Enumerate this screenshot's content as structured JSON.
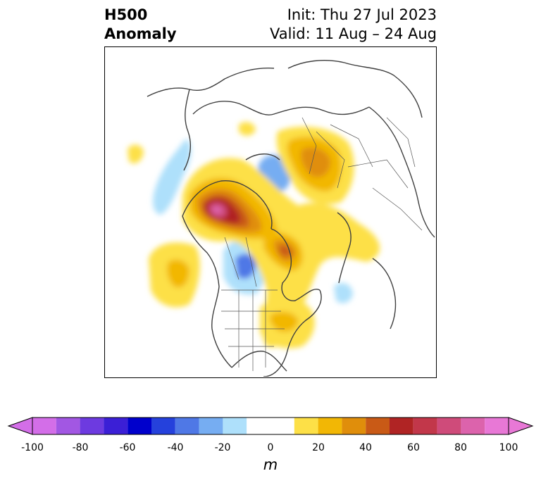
{
  "title": {
    "left_line1": "H500",
    "left_line2": "Anomaly",
    "right_line1": "Init: Thu 27 Jul 2023",
    "right_line2": "Valid: 11 Aug – 24 Aug"
  },
  "colorbar": {
    "unit": "m",
    "ticks": [
      "-100",
      "-80",
      "-60",
      "-40",
      "-20",
      "0",
      "20",
      "40",
      "60",
      "80",
      "100"
    ],
    "levels": [
      -100,
      -90,
      -80,
      -70,
      -60,
      -50,
      -40,
      -30,
      -20,
      -10,
      10,
      20,
      30,
      40,
      50,
      60,
      70,
      80,
      90,
      100
    ],
    "colors": [
      "#d36ee8",
      "#a257e3",
      "#6d3ae0",
      "#3b1fd6",
      "#0000cc",
      "#2541dc",
      "#4f78e6",
      "#76adf2",
      "#aee0fb",
      "#ffffff",
      "#fde047",
      "#f2b705",
      "#e08e0b",
      "#c95a16",
      "#b02424",
      "#c2374a",
      "#cf4b7a",
      "#dc63ac",
      "#e878d6"
    ],
    "extend": "both"
  },
  "map": {
    "projection": "polar stereographic, North Pole",
    "field": "500 hPa geopotential height anomaly"
  }
}
